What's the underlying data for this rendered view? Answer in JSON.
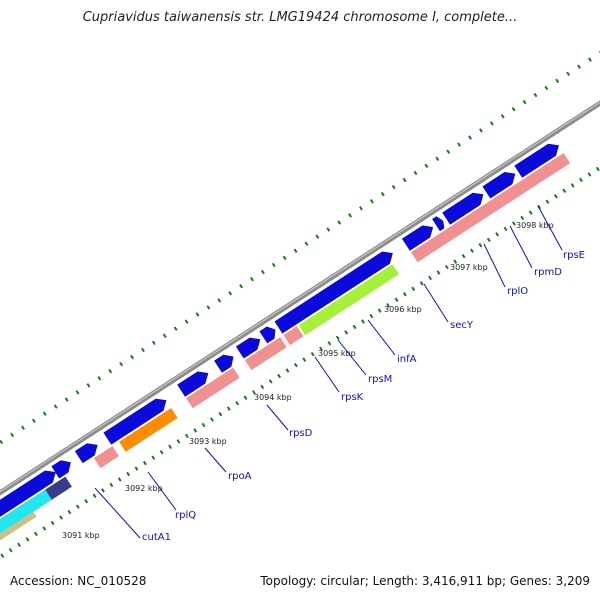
{
  "title": "Cupriavidus taiwanensis str. LMG19424 chromosome I, complete...",
  "footer": {
    "accession": "Accession: NC_010528",
    "summary": "Topology: circular; Length: 3,416,911 bp; Genes: 3,209"
  },
  "colors": {
    "backbone": "#8c8c8c",
    "forward_cds": "#0a0adc",
    "reverse_cds": "#f09090",
    "highlight_green": "#a6f03a",
    "highlight_orange": "#ff8c00",
    "highlight_cyan": "#22e6f0",
    "highlight_navy": "#3b3b8c",
    "highlight_tan": "#c9c08a",
    "tick_dark": "#1a7a1a",
    "label_blue": "#1010c0"
  },
  "scale_labels": [
    "3091 kbp",
    "3092 kbp",
    "3093 kbp",
    "3094 kbp",
    "3095 kbp",
    "3096 kbp",
    "3097 kbp",
    "3098 kbp"
  ],
  "gene_labels": [
    "cutA1",
    "rplQ",
    "rpoA",
    "rpsD",
    "rpsK",
    "rpsM",
    "infA",
    "secY",
    "rplO",
    "rpmD",
    "rpsE"
  ]
}
